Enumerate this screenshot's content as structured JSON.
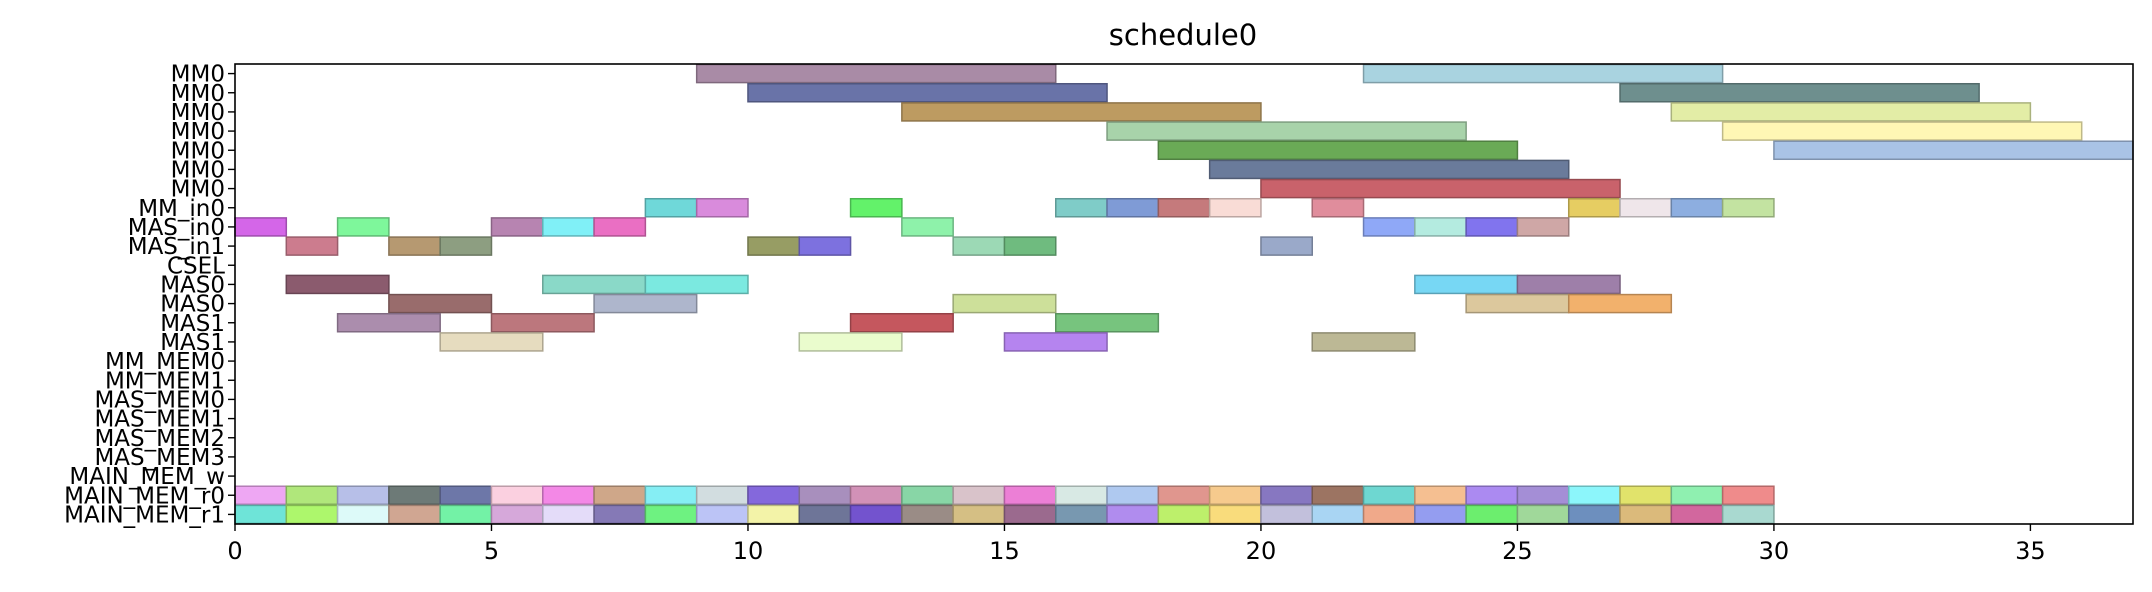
{
  "chart_data": {
    "type": "gantt",
    "title": "schedule0",
    "xlabel": "",
    "ylabel": "",
    "xlim": [
      0,
      37
    ],
    "xticks": [
      0,
      5,
      10,
      15,
      20,
      25,
      30,
      35
    ],
    "grid": false,
    "rows": [
      "MM0",
      "MM0",
      "MM0",
      "MM0",
      "MM0",
      "MM0",
      "MM0",
      "MM_in0",
      "MAS_in0",
      "MAS_in1",
      "CSEL",
      "MAS0",
      "MAS0",
      "MAS1",
      "MAS1",
      "MM_MEM0",
      "MM_MEM1",
      "MAS_MEM0",
      "MAS_MEM1",
      "MAS_MEM2",
      "MAS_MEM3",
      "MAIN_MEM_w",
      "MAIN_MEM_r0",
      "MAIN_MEM_r1"
    ],
    "tasks": [
      {
        "row": 0,
        "start": 9,
        "end": 16,
        "color": "#a98ba6"
      },
      {
        "row": 0,
        "start": 22,
        "end": 29,
        "color": "#a9d3e0"
      },
      {
        "row": 1,
        "start": 10,
        "end": 17,
        "color": "#6973a8"
      },
      {
        "row": 1,
        "start": 27,
        "end": 34,
        "color": "#6e8f8e"
      },
      {
        "row": 2,
        "start": 13,
        "end": 20,
        "color": "#bd9b61"
      },
      {
        "row": 2,
        "start": 28,
        "end": 35,
        "color": "#e3eda6"
      },
      {
        "row": 3,
        "start": 17,
        "end": 24,
        "color": "#a8d3aa"
      },
      {
        "row": 3,
        "start": 29,
        "end": 36,
        "color": "#fff7b5"
      },
      {
        "row": 4,
        "start": 18,
        "end": 25,
        "color": "#6aaa56"
      },
      {
        "row": 4,
        "start": 30,
        "end": 37,
        "color": "#a9c3e6"
      },
      {
        "row": 5,
        "start": 19,
        "end": 26,
        "color": "#6a7b9b"
      },
      {
        "row": 6,
        "start": 20,
        "end": 27,
        "color": "#c9626b"
      },
      {
        "row": 7,
        "start": 8,
        "end": 9,
        "color": "#6fd8d9"
      },
      {
        "row": 7,
        "start": 9,
        "end": 10,
        "color": "#d98bdc"
      },
      {
        "row": 7,
        "start": 12,
        "end": 13,
        "color": "#63f26a"
      },
      {
        "row": 7,
        "start": 16,
        "end": 17,
        "color": "#7fccc8"
      },
      {
        "row": 7,
        "start": 17,
        "end": 18,
        "color": "#7f9bd6"
      },
      {
        "row": 7,
        "start": 18,
        "end": 19,
        "color": "#c57a7c"
      },
      {
        "row": 7,
        "start": 19,
        "end": 20,
        "color": "#f9dcd6"
      },
      {
        "row": 7,
        "start": 21,
        "end": 22,
        "color": "#e08d9c"
      },
      {
        "row": 7,
        "start": 26,
        "end": 27,
        "color": "#e6cd62"
      },
      {
        "row": 7,
        "start": 27,
        "end": 28,
        "color": "#efe6ea"
      },
      {
        "row": 7,
        "start": 28,
        "end": 29,
        "color": "#8daee0"
      },
      {
        "row": 7,
        "start": 29,
        "end": 30,
        "color": "#c3e3a1"
      },
      {
        "row": 8,
        "start": 0,
        "end": 1,
        "color": "#d466e8"
      },
      {
        "row": 8,
        "start": 2,
        "end": 3,
        "color": "#7ef79b"
      },
      {
        "row": 8,
        "start": 5,
        "end": 6,
        "color": "#b784b1"
      },
      {
        "row": 8,
        "start": 6,
        "end": 7,
        "color": "#80f0f7"
      },
      {
        "row": 8,
        "start": 7,
        "end": 8,
        "color": "#ea6fc3"
      },
      {
        "row": 8,
        "start": 13,
        "end": 14,
        "color": "#8ef2aa"
      },
      {
        "row": 8,
        "start": 22,
        "end": 23,
        "color": "#8fa8f7"
      },
      {
        "row": 8,
        "start": 23,
        "end": 24,
        "color": "#b4ebe0"
      },
      {
        "row": 8,
        "start": 24,
        "end": 25,
        "color": "#8174ee"
      },
      {
        "row": 8,
        "start": 25,
        "end": 26,
        "color": "#cfa7a6"
      },
      {
        "row": 9,
        "start": 1,
        "end": 2,
        "color": "#cc7c8e"
      },
      {
        "row": 9,
        "start": 3,
        "end": 4,
        "color": "#b69971"
      },
      {
        "row": 9,
        "start": 4,
        "end": 5,
        "color": "#8d9e81"
      },
      {
        "row": 9,
        "start": 10,
        "end": 11,
        "color": "#979d64"
      },
      {
        "row": 9,
        "start": 11,
        "end": 12,
        "color": "#7d71df"
      },
      {
        "row": 9,
        "start": 14,
        "end": 15,
        "color": "#9cd9b5"
      },
      {
        "row": 9,
        "start": 15,
        "end": 16,
        "color": "#6fbb7f"
      },
      {
        "row": 9,
        "start": 20,
        "end": 21,
        "color": "#9aa9c9"
      },
      {
        "row": 11,
        "start": 1,
        "end": 3,
        "color": "#8b5b6e"
      },
      {
        "row": 11,
        "start": 6,
        "end": 8,
        "color": "#8ad9c8"
      },
      {
        "row": 11,
        "start": 8,
        "end": 10,
        "color": "#7be9e0"
      },
      {
        "row": 11,
        "start": 23,
        "end": 25,
        "color": "#77d7f4"
      },
      {
        "row": 11,
        "start": 25,
        "end": 27,
        "color": "#9e7fa9"
      },
      {
        "row": 12,
        "start": 3,
        "end": 5,
        "color": "#996c6c"
      },
      {
        "row": 12,
        "start": 7,
        "end": 9,
        "color": "#aeb6cc"
      },
      {
        "row": 12,
        "start": 14,
        "end": 16,
        "color": "#cde09a"
      },
      {
        "row": 12,
        "start": 24,
        "end": 26,
        "color": "#dcc89d"
      },
      {
        "row": 12,
        "start": 26,
        "end": 28,
        "color": "#f2b16c"
      },
      {
        "row": 13,
        "start": 2,
        "end": 4,
        "color": "#ab8dad"
      },
      {
        "row": 13,
        "start": 5,
        "end": 7,
        "color": "#bc777d"
      },
      {
        "row": 13,
        "start": 12,
        "end": 14,
        "color": "#c5575e"
      },
      {
        "row": 13,
        "start": 16,
        "end": 18,
        "color": "#77c47e"
      },
      {
        "row": 14,
        "start": 4,
        "end": 6,
        "color": "#e6dcbf"
      },
      {
        "row": 14,
        "start": 11,
        "end": 13,
        "color": "#eafccd"
      },
      {
        "row": 14,
        "start": 15,
        "end": 17,
        "color": "#b584ef"
      },
      {
        "row": 14,
        "start": 21,
        "end": 23,
        "color": "#bcb895"
      },
      {
        "row": 22,
        "start": 0,
        "end": 1,
        "color": "#eea7f3"
      },
      {
        "row": 22,
        "start": 1,
        "end": 2,
        "color": "#b0e77b"
      },
      {
        "row": 22,
        "start": 2,
        "end": 3,
        "color": "#b7bfe8"
      },
      {
        "row": 22,
        "start": 3,
        "end": 4,
        "color": "#6d7a77"
      },
      {
        "row": 22,
        "start": 4,
        "end": 5,
        "color": "#6d77a8"
      },
      {
        "row": 22,
        "start": 5,
        "end": 6,
        "color": "#fbd0e0"
      },
      {
        "row": 22,
        "start": 6,
        "end": 7,
        "color": "#f388e6"
      },
      {
        "row": 22,
        "start": 7,
        "end": 8,
        "color": "#cfa789"
      },
      {
        "row": 22,
        "start": 8,
        "end": 9,
        "color": "#85eef4"
      },
      {
        "row": 22,
        "start": 9,
        "end": 10,
        "color": "#d2dde0"
      },
      {
        "row": 22,
        "start": 10,
        "end": 11,
        "color": "#8468dc"
      },
      {
        "row": 22,
        "start": 11,
        "end": 12,
        "color": "#a88fbd"
      },
      {
        "row": 22,
        "start": 12,
        "end": 13,
        "color": "#d291b7"
      },
      {
        "row": 22,
        "start": 13,
        "end": 14,
        "color": "#88d6a6"
      },
      {
        "row": 22,
        "start": 14,
        "end": 15,
        "color": "#d9c3ca"
      },
      {
        "row": 22,
        "start": 15,
        "end": 16,
        "color": "#ec7fd6"
      },
      {
        "row": 22,
        "start": 16,
        "end": 17,
        "color": "#d8e9e4"
      },
      {
        "row": 22,
        "start": 17,
        "end": 18,
        "color": "#afc9f0"
      },
      {
        "row": 22,
        "start": 18,
        "end": 19,
        "color": "#e0968e"
      },
      {
        "row": 22,
        "start": 19,
        "end": 20,
        "color": "#f6ca8d"
      },
      {
        "row": 22,
        "start": 20,
        "end": 21,
        "color": "#8777c1"
      },
      {
        "row": 22,
        "start": 21,
        "end": 22,
        "color": "#9c7462"
      },
      {
        "row": 22,
        "start": 22,
        "end": 23,
        "color": "#6ed7d1"
      },
      {
        "row": 22,
        "start": 23,
        "end": 24,
        "color": "#f5bf91"
      },
      {
        "row": 22,
        "start": 24,
        "end": 25,
        "color": "#ab8af1"
      },
      {
        "row": 22,
        "start": 25,
        "end": 26,
        "color": "#a48ed6"
      },
      {
        "row": 22,
        "start": 26,
        "end": 27,
        "color": "#8cf6fb"
      },
      {
        "row": 22,
        "start": 27,
        "end": 28,
        "color": "#e1e36b"
      },
      {
        "row": 22,
        "start": 28,
        "end": 29,
        "color": "#8ff0b0"
      },
      {
        "row": 22,
        "start": 29,
        "end": 30,
        "color": "#ef8b8b"
      },
      {
        "row": 23,
        "start": 0,
        "end": 1,
        "color": "#6ee4d8"
      },
      {
        "row": 23,
        "start": 1,
        "end": 2,
        "color": "#adf76c"
      },
      {
        "row": 23,
        "start": 2,
        "end": 3,
        "color": "#ddfaf9"
      },
      {
        "row": 23,
        "start": 3,
        "end": 4,
        "color": "#d0a692"
      },
      {
        "row": 23,
        "start": 4,
        "end": 5,
        "color": "#73f2a6"
      },
      {
        "row": 23,
        "start": 5,
        "end": 6,
        "color": "#d6a8da"
      },
      {
        "row": 23,
        "start": 6,
        "end": 7,
        "color": "#e4dcf9"
      },
      {
        "row": 23,
        "start": 7,
        "end": 8,
        "color": "#8579b6"
      },
      {
        "row": 23,
        "start": 8,
        "end": 9,
        "color": "#6ef281"
      },
      {
        "row": 23,
        "start": 9,
        "end": 10,
        "color": "#bcc4f6"
      },
      {
        "row": 23,
        "start": 10,
        "end": 11,
        "color": "#f3f3a8"
      },
      {
        "row": 23,
        "start": 11,
        "end": 12,
        "color": "#6e7598"
      },
      {
        "row": 23,
        "start": 12,
        "end": 13,
        "color": "#7353ce"
      },
      {
        "row": 23,
        "start": 13,
        "end": 14,
        "color": "#9a8c86"
      },
      {
        "row": 23,
        "start": 14,
        "end": 15,
        "color": "#d5bf84"
      },
      {
        "row": 23,
        "start": 15,
        "end": 16,
        "color": "#9b6a8e"
      },
      {
        "row": 23,
        "start": 16,
        "end": 17,
        "color": "#7898b0"
      },
      {
        "row": 23,
        "start": 17,
        "end": 18,
        "color": "#b08cee"
      },
      {
        "row": 23,
        "start": 18,
        "end": 19,
        "color": "#bdf06b"
      },
      {
        "row": 23,
        "start": 19,
        "end": 20,
        "color": "#f9dc7c"
      },
      {
        "row": 23,
        "start": 20,
        "end": 21,
        "color": "#c2c0dc"
      },
      {
        "row": 23,
        "start": 21,
        "end": 22,
        "color": "#a9d5f3"
      },
      {
        "row": 23,
        "start": 22,
        "end": 23,
        "color": "#f0a98a"
      },
      {
        "row": 23,
        "start": 23,
        "end": 24,
        "color": "#949df0"
      },
      {
        "row": 23,
        "start": 24,
        "end": 25,
        "color": "#6cee6e"
      },
      {
        "row": 23,
        "start": 25,
        "end": 26,
        "color": "#a0d89a"
      },
      {
        "row": 23,
        "start": 26,
        "end": 27,
        "color": "#6d8fbe"
      },
      {
        "row": 23,
        "start": 27,
        "end": 28,
        "color": "#dbba7b"
      },
      {
        "row": 23,
        "start": 28,
        "end": 29,
        "color": "#d2679e"
      },
      {
        "row": 23,
        "start": 29,
        "end": 30,
        "color": "#a9d9d0"
      }
    ]
  }
}
